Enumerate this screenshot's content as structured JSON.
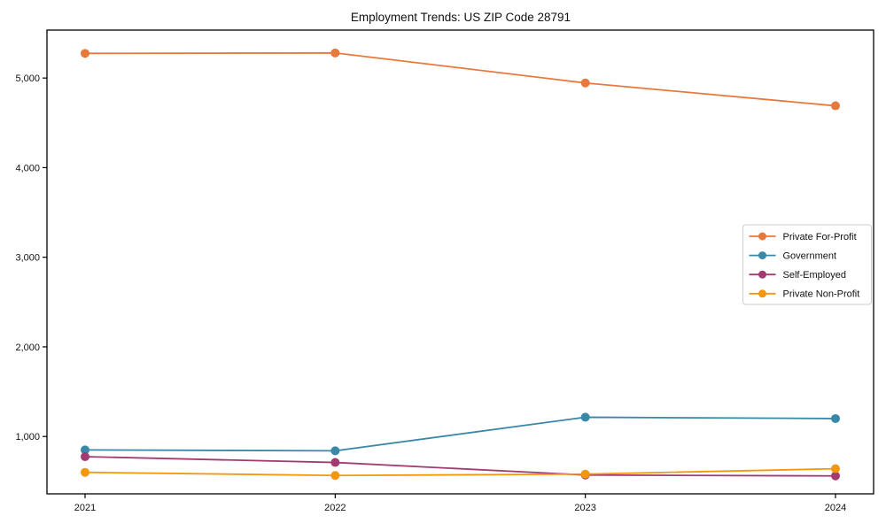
{
  "chart": {
    "title": "Employment Trends: US ZIP Code 28791"
  },
  "chart_data": {
    "type": "line",
    "title": "Employment Trends: US ZIP Code 28791",
    "x": [
      2021,
      2022,
      2023,
      2024
    ],
    "xticks": [
      "2021",
      "2022",
      "2023",
      "2024"
    ],
    "series": [
      {
        "name": "Private For-Profit",
        "color": "#E8793D",
        "values": [
          5275,
          5280,
          4945,
          4690
        ]
      },
      {
        "name": "Government",
        "color": "#3A88A8",
        "values": [
          850,
          840,
          1215,
          1200
        ]
      },
      {
        "name": "Self-Employed",
        "color": "#A23B72",
        "values": [
          775,
          710,
          570,
          560
        ]
      },
      {
        "name": "Private Non-Profit",
        "color": "#F3980E",
        "values": [
          600,
          565,
          580,
          640
        ]
      }
    ],
    "xlabel": "",
    "ylabel": "",
    "ylim": [
      360,
      5535
    ],
    "yticks": [
      1000,
      2000,
      3000,
      4000,
      5000
    ],
    "grid": false,
    "legend_position": "center-right",
    "axis_color": "#000000",
    "legend_border_color": "#cccccc",
    "marker": "circle",
    "marker_radius": 5,
    "line_width": 1.8
  }
}
